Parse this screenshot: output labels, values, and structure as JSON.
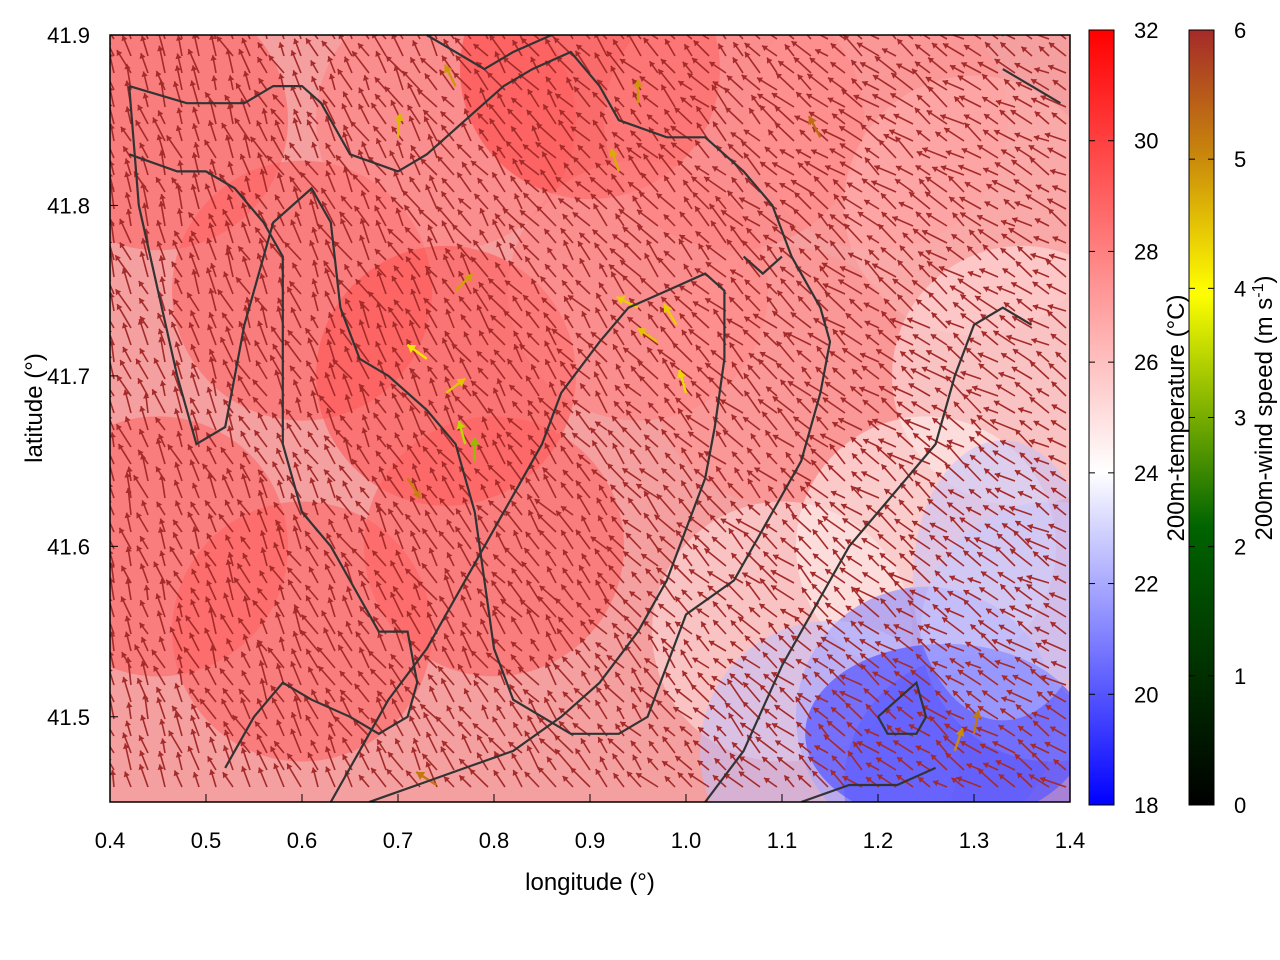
{
  "chart_data": {
    "type": "heatmap",
    "subtype": "vector-field-over-color-map-with-contours",
    "xlabel": "longitude (°)",
    "ylabel": "latitude (°)",
    "xlim": [
      0.4,
      1.4
    ],
    "ylim": [
      41.45,
      41.9
    ],
    "xticks": [
      0.4,
      0.5,
      0.6,
      0.7,
      0.8,
      0.9,
      1.0,
      1.1,
      1.2,
      1.3,
      1.4
    ],
    "xtick_labels": [
      "0.4",
      "0.5",
      "0.6",
      "0.7",
      "0.8",
      "0.9",
      "1.0",
      "1.1",
      "1.2",
      "1.3",
      "1.4"
    ],
    "yticks": [
      41.5,
      41.6,
      41.7,
      41.8,
      41.9
    ],
    "ytick_labels": [
      "41.5",
      "41.6",
      "41.7",
      "41.8",
      "41.9"
    ],
    "grid": false,
    "colorbars": [
      {
        "label": "200m-temperature (°C)",
        "range": [
          18,
          32
        ],
        "ticks": [
          18,
          20,
          22,
          24,
          26,
          28,
          30,
          32
        ],
        "tick_labels": [
          "18",
          "20",
          "22",
          "24",
          "26",
          "28",
          "30",
          "32"
        ],
        "colors": [
          "#0000ff",
          "#ffffff",
          "#ff0000"
        ]
      },
      {
        "label": "200m-wind speed (m s",
        "label_sup": "-1",
        "label_end": ")",
        "range": [
          0,
          6
        ],
        "ticks": [
          0,
          1,
          2,
          3,
          4,
          5,
          6
        ],
        "tick_labels": [
          "0",
          "1",
          "2",
          "3",
          "4",
          "5",
          "6"
        ],
        "colors": [
          "#000000",
          "#006400",
          "#ffff00",
          "#b8860b",
          "#a52a2a"
        ]
      }
    ],
    "temperature_field": {
      "description_values": "approximate temperature at selected points (lon, lat, °C)",
      "points": [
        [
          0.45,
          41.85,
          29
        ],
        [
          0.45,
          41.6,
          29
        ],
        [
          0.6,
          41.75,
          29
        ],
        [
          0.6,
          41.55,
          29
        ],
        [
          0.75,
          41.85,
          28
        ],
        [
          0.75,
          41.7,
          29.5
        ],
        [
          0.8,
          41.6,
          29
        ],
        [
          0.9,
          41.88,
          30
        ],
        [
          0.95,
          41.75,
          28
        ],
        [
          1.05,
          41.85,
          28
        ],
        [
          1.1,
          41.7,
          27.5
        ],
        [
          1.1,
          41.55,
          25
        ],
        [
          1.2,
          41.85,
          27.5
        ],
        [
          1.3,
          41.8,
          26.5
        ],
        [
          1.35,
          41.7,
          25
        ],
        [
          1.25,
          41.6,
          24.5
        ],
        [
          1.25,
          41.5,
          21
        ],
        [
          1.15,
          41.48,
          22.5
        ],
        [
          1.3,
          41.46,
          20.5
        ],
        [
          1.38,
          41.55,
          23
        ]
      ]
    },
    "contours": [
      {
        "points": [
          [
            0.42,
            41.87
          ],
          [
            0.48,
            41.86
          ],
          [
            0.54,
            41.86
          ],
          [
            0.57,
            41.87
          ],
          [
            0.6,
            41.87
          ],
          [
            0.62,
            41.86
          ],
          [
            0.65,
            41.83
          ],
          [
            0.7,
            41.82
          ],
          [
            0.73,
            41.83
          ],
          [
            0.75,
            41.84
          ],
          [
            0.79,
            41.86
          ],
          [
            0.81,
            41.87
          ],
          [
            0.84,
            41.88
          ],
          [
            0.88,
            41.89
          ],
          [
            0.91,
            41.87
          ],
          [
            0.93,
            41.85
          ],
          [
            0.98,
            41.84
          ],
          [
            1.02,
            41.84
          ],
          [
            1.06,
            41.82
          ],
          [
            1.09,
            41.8
          ],
          [
            1.11,
            41.77
          ],
          [
            1.14,
            41.74
          ],
          [
            1.15,
            41.72
          ],
          [
            1.14,
            41.69
          ],
          [
            1.12,
            41.65
          ],
          [
            1.09,
            41.62
          ],
          [
            1.05,
            41.58
          ],
          [
            1.0,
            41.56
          ],
          [
            0.98,
            41.53
          ],
          [
            0.96,
            41.5
          ],
          [
            0.93,
            41.49
          ],
          [
            0.88,
            41.49
          ],
          [
            0.85,
            41.5
          ],
          [
            0.82,
            41.51
          ],
          [
            0.8,
            41.54
          ],
          [
            0.79,
            41.58
          ],
          [
            0.78,
            41.62
          ],
          [
            0.76,
            41.66
          ],
          [
            0.73,
            41.68
          ],
          [
            0.69,
            41.7
          ],
          [
            0.66,
            41.71
          ],
          [
            0.64,
            41.74
          ],
          [
            0.63,
            41.79
          ],
          [
            0.61,
            41.81
          ],
          [
            0.57,
            41.79
          ],
          [
            0.54,
            41.73
          ],
          [
            0.52,
            41.67
          ],
          [
            0.49,
            41.66
          ],
          [
            0.47,
            41.7
          ],
          [
            0.45,
            41.75
          ],
          [
            0.43,
            41.8
          ],
          [
            0.42,
            41.87
          ]
        ]
      },
      {
        "points": [
          [
            0.42,
            41.83
          ],
          [
            0.47,
            41.82
          ],
          [
            0.5,
            41.82
          ],
          [
            0.53,
            41.81
          ],
          [
            0.56,
            41.79
          ],
          [
            0.58,
            41.77
          ],
          [
            0.58,
            41.72
          ],
          [
            0.58,
            41.66
          ],
          [
            0.6,
            41.62
          ],
          [
            0.63,
            41.6
          ],
          [
            0.66,
            41.57
          ],
          [
            0.68,
            41.55
          ],
          [
            0.71,
            41.55
          ],
          [
            0.72,
            41.52
          ],
          [
            0.71,
            41.5
          ],
          [
            0.68,
            41.49
          ],
          [
            0.65,
            41.5
          ],
          [
            0.61,
            41.51
          ],
          [
            0.58,
            41.52
          ],
          [
            0.55,
            41.5
          ],
          [
            0.52,
            41.47
          ]
        ]
      },
      {
        "points": [
          [
            0.63,
            41.45
          ],
          [
            0.66,
            41.48
          ],
          [
            0.69,
            41.51
          ],
          [
            0.73,
            41.54
          ],
          [
            0.78,
            41.59
          ],
          [
            0.82,
            41.63
          ],
          [
            0.85,
            41.66
          ],
          [
            0.87,
            41.69
          ],
          [
            0.91,
            41.72
          ],
          [
            0.94,
            41.74
          ],
          [
            0.98,
            41.75
          ],
          [
            1.02,
            41.76
          ],
          [
            1.04,
            41.75
          ],
          [
            1.04,
            41.71
          ],
          [
            1.03,
            41.67
          ],
          [
            1.02,
            41.64
          ],
          [
            1.0,
            41.61
          ],
          [
            0.98,
            41.58
          ],
          [
            0.95,
            41.55
          ],
          [
            0.91,
            41.52
          ],
          [
            0.87,
            41.5
          ],
          [
            0.82,
            41.48
          ],
          [
            0.77,
            41.47
          ],
          [
            0.72,
            41.46
          ],
          [
            0.67,
            41.45
          ]
        ]
      },
      {
        "points": [
          [
            1.02,
            41.45
          ],
          [
            1.06,
            41.48
          ],
          [
            1.1,
            41.53
          ],
          [
            1.14,
            41.57
          ],
          [
            1.17,
            41.6
          ],
          [
            1.2,
            41.62
          ],
          [
            1.23,
            41.64
          ],
          [
            1.26,
            41.66
          ],
          [
            1.28,
            41.7
          ],
          [
            1.3,
            41.73
          ],
          [
            1.33,
            41.74
          ],
          [
            1.36,
            41.73
          ]
        ]
      },
      {
        "points": [
          [
            1.12,
            41.45
          ],
          [
            1.17,
            41.46
          ],
          [
            1.22,
            41.46
          ],
          [
            1.26,
            41.47
          ]
        ]
      },
      {
        "points": [
          [
            1.2,
            41.5
          ],
          [
            1.24,
            41.52
          ],
          [
            1.25,
            41.5
          ],
          [
            1.24,
            41.49
          ],
          [
            1.21,
            41.49
          ],
          [
            1.2,
            41.5
          ]
        ]
      },
      {
        "points": [
          [
            1.33,
            41.88
          ],
          [
            1.36,
            41.87
          ],
          [
            1.39,
            41.86
          ]
        ]
      },
      {
        "points": [
          [
            0.73,
            41.9
          ],
          [
            0.79,
            41.88
          ],
          [
            0.82,
            41.89
          ],
          [
            0.86,
            41.9
          ]
        ]
      },
      {
        "points": [
          [
            1.06,
            41.77
          ],
          [
            1.08,
            41.76
          ],
          [
            1.1,
            41.77
          ]
        ]
      }
    ],
    "wind_vectors": {
      "description_values": "wind vectors: [lon, lat, u (m/s eastward), v (m/s northward), speed m/s]",
      "dominant_direction": "north-westward in the east, northward/north-north-westward in the west",
      "samples": [
        [
          0.73,
          41.71,
          -1.1,
          0.8,
          4.2
        ],
        [
          0.75,
          41.69,
          0.4,
          0.3,
          4.5
        ],
        [
          0.77,
          41.66,
          -0.3,
          1.1,
          3.5
        ],
        [
          0.78,
          41.65,
          0.0,
          0.6,
          3.2
        ],
        [
          0.71,
          41.64,
          0.5,
          -0.8,
          5.1
        ],
        [
          0.76,
          41.75,
          0.9,
          0.9,
          4.8
        ],
        [
          0.7,
          41.84,
          0.1,
          1.3,
          4.6
        ],
        [
          0.76,
          41.87,
          -0.5,
          1.0,
          4.9
        ],
        [
          0.93,
          41.82,
          -0.4,
          1.2,
          4.7
        ],
        [
          0.95,
          41.74,
          -1.2,
          0.6,
          4.4
        ],
        [
          0.97,
          41.72,
          -1.0,
          0.7,
          4.5
        ],
        [
          1.0,
          41.69,
          -0.4,
          1.4,
          4.3
        ],
        [
          0.99,
          41.73,
          -0.6,
          1.0,
          4.4
        ],
        [
          1.28,
          41.48,
          0.5,
          1.5,
          5.0
        ],
        [
          1.3,
          41.49,
          0.3,
          1.6,
          5.2
        ],
        [
          0.74,
          41.46,
          -1.4,
          0.9,
          5.2
        ],
        [
          0.95,
          41.86,
          0.0,
          1.3,
          4.9
        ],
        [
          1.14,
          41.84,
          -0.6,
          1.1,
          5.3
        ]
      ]
    }
  }
}
